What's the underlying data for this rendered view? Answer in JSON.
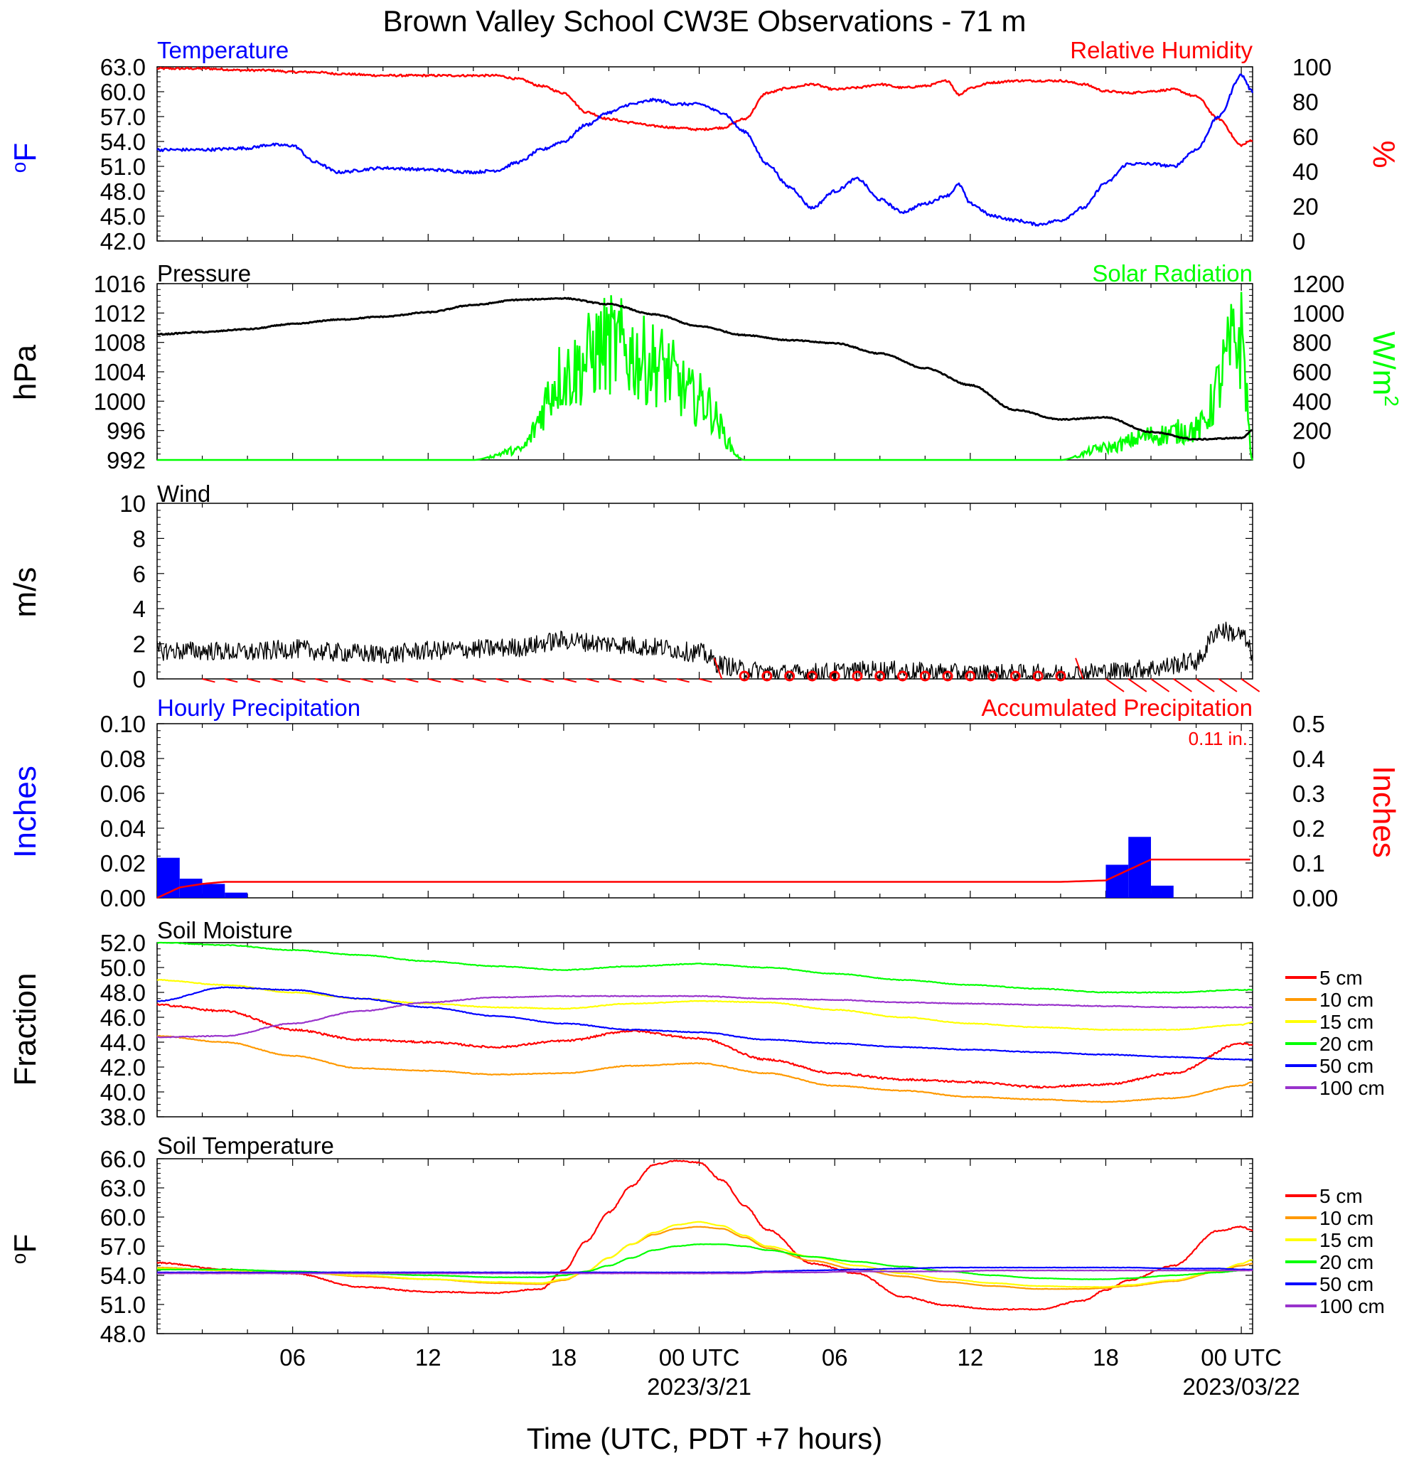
{
  "title": "Brown Valley School CW3E Observations - 71 m",
  "xaxis": {
    "label": "Time (UTC, PDT +7 hours)",
    "ticks": [
      {
        "h": 6,
        "label": "06"
      },
      {
        "h": 12,
        "label": "12"
      },
      {
        "h": 18,
        "label": "18"
      },
      {
        "h": 24,
        "label": "00 UTC",
        "date": "2023/3/21"
      },
      {
        "h": 30,
        "label": "06"
      },
      {
        "h": 36,
        "label": "12"
      },
      {
        "h": 42,
        "label": "18"
      },
      {
        "h": 48,
        "label": "00 UTC",
        "date": "2023/03/22"
      }
    ],
    "range_hours": [
      0,
      48.5
    ]
  },
  "panels": {
    "temperature": {
      "left_title": "Temperature",
      "right_title": "Relative Humidity",
      "left_unit": "oF",
      "right_unit": "%",
      "left_ticks": [
        "63.0",
        "60.0",
        "57.0",
        "54.0",
        "51.0",
        "48.0",
        "45.0",
        "42.0"
      ],
      "right_ticks": [
        "100",
        "80",
        "60",
        "40",
        "20",
        "0"
      ]
    },
    "pressure": {
      "left_title": "Pressure",
      "right_title": "Solar Radiation",
      "left_unit": "hPa",
      "right_unit": "W/m2",
      "left_ticks": [
        "1016",
        "1012",
        "1008",
        "1004",
        "1000",
        "996",
        "992"
      ],
      "right_ticks": [
        "1200",
        "1000",
        "800",
        "600",
        "400",
        "200",
        "0"
      ]
    },
    "wind": {
      "left_title": "Wind",
      "left_unit": "m/s",
      "left_ticks": [
        "10",
        "8",
        "6",
        "4",
        "2",
        "0"
      ]
    },
    "precip": {
      "left_title": "Hourly Precipitation",
      "right_title": "Accumulated Precipitation",
      "left_unit": "Inches",
      "right_unit": "Inches",
      "total_label": "0.11 in.",
      "left_ticks": [
        "0.10",
        "0.08",
        "0.06",
        "0.04",
        "0.02",
        "0.00"
      ],
      "right_ticks": [
        "0.5",
        "0.4",
        "0.3",
        "0.2",
        "0.1",
        "0.00"
      ]
    },
    "soil_moisture": {
      "left_title": "Soil Moisture",
      "left_unit": "Fraction",
      "left_ticks": [
        "52.0",
        "50.0",
        "48.0",
        "46.0",
        "44.0",
        "42.0",
        "40.0",
        "38.0"
      ],
      "legend": [
        "5 cm",
        "10 cm",
        "15 cm",
        "20 cm",
        "50 cm",
        "100 cm"
      ]
    },
    "soil_temperature": {
      "left_title": "Soil Temperature",
      "left_unit": "oF",
      "left_ticks": [
        "66.0",
        "63.0",
        "60.0",
        "57.0",
        "54.0",
        "51.0",
        "48.0"
      ],
      "legend": [
        "5 cm",
        "10 cm",
        "15 cm",
        "20 cm",
        "50 cm",
        "100 cm"
      ]
    }
  },
  "colors": {
    "temp": "#0000ff",
    "rh": "#ff0000",
    "pressure": "#000000",
    "solar": "#00ff00",
    "wind": "#000000",
    "barb": "#ff0000",
    "precip_bar": "#0000ff",
    "precip_acc": "#ff0000",
    "depths": [
      "#ff0000",
      "#ff9900",
      "#ffff00",
      "#00ff00",
      "#0000ff",
      "#9933cc"
    ]
  },
  "chart_data": [
    {
      "type": "line",
      "name": "temperature",
      "x_hours": [
        0,
        2,
        4,
        5,
        6,
        7,
        8,
        10,
        12,
        14,
        15,
        16,
        17,
        18,
        19,
        20,
        21,
        22,
        23,
        24,
        25,
        26,
        27,
        28,
        29,
        30,
        31,
        32,
        33,
        34,
        35,
        35.5,
        36,
        37,
        38,
        39,
        40,
        41,
        42,
        43,
        44,
        45,
        46,
        47,
        48,
        48.5
      ],
      "series": [
        {
          "axis": "left",
          "values": [
            53,
            53,
            53.2,
            53.6,
            53.5,
            51.5,
            50.3,
            50.8,
            50.6,
            50.3,
            50.5,
            51.5,
            53,
            54,
            56,
            57.5,
            58.5,
            59,
            58.5,
            58.5,
            57.5,
            55.2,
            51.3,
            48.5,
            46,
            48,
            49.5,
            47,
            45.5,
            46.5,
            47.5,
            48.8,
            46.5,
            45,
            44.5,
            44,
            44.5,
            46,
            49,
            51.3,
            51.3,
            51,
            53,
            57,
            62,
            60
          ]
        },
        {
          "axis": "right",
          "values": [
            99,
            99,
            98,
            98,
            97,
            97,
            96,
            95,
            95,
            95,
            95,
            93,
            89,
            85,
            74,
            70,
            68,
            66,
            65,
            64,
            65,
            70,
            85,
            88,
            90,
            87,
            88,
            90,
            88,
            89,
            92,
            84,
            88,
            91,
            92,
            92,
            92,
            90,
            86,
            85,
            86,
            87,
            83,
            70,
            55,
            58
          ]
        }
      ],
      "left_range": [
        42,
        63
      ],
      "right_range": [
        0,
        100
      ]
    },
    {
      "type": "line",
      "name": "pressure",
      "x_hours": [
        0,
        2,
        4,
        6,
        8,
        10,
        12,
        14,
        16,
        18,
        20,
        22,
        24,
        26,
        28,
        30,
        32,
        34,
        36,
        38,
        40,
        42,
        44,
        46,
        48,
        48.5
      ],
      "series": [
        {
          "axis": "left",
          "values": [
            1009.1,
            1009.4,
            1009.8,
            1010.5,
            1011.1,
            1011.5,
            1012.1,
            1013.1,
            1013.8,
            1014.0,
            1013.2,
            1011.8,
            1010.2,
            1009.0,
            1008.3,
            1007.9,
            1006.5,
            1004.5,
            1002.2,
            998.8,
            997.5,
            997.8,
            995.8,
            994.8,
            995.0,
            996.0
          ]
        },
        {
          "axis": "right",
          "values": [
            0,
            0,
            0,
            0,
            0,
            0,
            0,
            0,
            80,
            700,
            950,
            800,
            500,
            0,
            0,
            0,
            0,
            0,
            0,
            0,
            0,
            100,
            200,
            250,
            1000,
            0
          ]
        }
      ],
      "left_range": [
        992,
        1016
      ],
      "right_range": [
        0,
        1200
      ]
    },
    {
      "type": "line",
      "name": "wind_speed",
      "x_hours": [
        0,
        2,
        4,
        6,
        8,
        10,
        12,
        14,
        16,
        18,
        20,
        22,
        24,
        25,
        26,
        28,
        30,
        32,
        34,
        36,
        38,
        40,
        42,
        44,
        46,
        47,
        48,
        48.5
      ],
      "series": [
        {
          "values": [
            1.6,
            1.6,
            1.5,
            1.7,
            1.5,
            1.4,
            1.6,
            1.7,
            1.8,
            2.2,
            2.0,
            1.8,
            1.5,
            0.8,
            0.5,
            0.3,
            0.4,
            0.5,
            0.4,
            0.3,
            0.3,
            0.3,
            0.4,
            0.6,
            1.0,
            2.8,
            2.5,
            1.5
          ]
        }
      ],
      "range": [
        0,
        10
      ]
    },
    {
      "type": "bar",
      "name": "hourly_precipitation",
      "x_hours": [
        0,
        1,
        2,
        3,
        42,
        43,
        44
      ],
      "values": [
        0.023,
        0.011,
        0.008,
        0.003,
        0.019,
        0.035,
        0.007
      ],
      "range": [
        0,
        0.1
      ],
      "accumulated": {
        "x_hours": [
          0,
          1,
          2,
          3,
          40,
          42,
          43,
          44,
          48.5
        ],
        "values": [
          0,
          0.03,
          0.04,
          0.046,
          0.046,
          0.05,
          0.08,
          0.11,
          0.11
        ],
        "range": [
          0,
          0.5
        ]
      }
    },
    {
      "type": "line",
      "name": "soil_moisture",
      "x_hours": [
        0,
        3,
        6,
        9,
        12,
        15,
        18,
        21,
        24,
        27,
        30,
        33,
        36,
        39,
        42,
        45,
        48,
        48.5
      ],
      "series": [
        {
          "name": "5 cm",
          "values": [
            47,
            46.5,
            45,
            44.2,
            44,
            43.6,
            44.1,
            44.9,
            44.3,
            42.6,
            41.5,
            41,
            40.8,
            40.4,
            40.6,
            41.5,
            43.9,
            43.8
          ]
        },
        {
          "name": "10 cm",
          "values": [
            44.5,
            44,
            42.9,
            41.9,
            41.7,
            41.4,
            41.5,
            42.1,
            42.3,
            41.5,
            40.5,
            40.1,
            39.6,
            39.4,
            39.2,
            39.5,
            40.5,
            40.8
          ]
        },
        {
          "name": "15 cm",
          "values": [
            49,
            48.6,
            48,
            47.5,
            47.1,
            46.8,
            46.7,
            47.1,
            47.3,
            47.2,
            46.6,
            46,
            45.5,
            45.2,
            45,
            45,
            45.4,
            45.6
          ]
        },
        {
          "name": "20 cm",
          "values": [
            52,
            51.8,
            51.4,
            51,
            50.5,
            50.1,
            49.8,
            50.1,
            50.3,
            50,
            49.5,
            49,
            48.6,
            48.3,
            48,
            48,
            48.2,
            48.2
          ]
        },
        {
          "name": "50 cm",
          "values": [
            47.3,
            48.4,
            48.2,
            47.5,
            46.8,
            46.1,
            45.5,
            45,
            44.8,
            44.2,
            43.9,
            43.6,
            43.4,
            43.2,
            43,
            42.8,
            42.6,
            42.6
          ]
        },
        {
          "name": "100 cm",
          "values": [
            44.4,
            44.5,
            45.5,
            46.5,
            47.2,
            47.6,
            47.7,
            47.7,
            47.7,
            47.5,
            47.4,
            47.2,
            47.1,
            47,
            46.9,
            46.8,
            46.8,
            46.8
          ]
        }
      ],
      "range": [
        38,
        52
      ]
    },
    {
      "type": "line",
      "name": "soil_temperature",
      "x_hours": [
        0,
        3,
        6,
        9,
        12,
        15,
        17,
        18,
        19,
        20,
        21,
        22,
        23,
        24,
        25,
        26,
        27,
        29,
        31,
        33,
        35,
        37,
        39,
        41,
        42,
        43,
        45,
        47,
        48,
        48.5
      ],
      "series": [
        {
          "name": "5 cm",
          "values": [
            55.3,
            54.6,
            54.2,
            52.8,
            52.3,
            52.2,
            52.6,
            54.5,
            57.5,
            60.5,
            63.2,
            65.4,
            65.8,
            65.6,
            63.8,
            61.2,
            58.7,
            55.2,
            54.2,
            51.8,
            50.9,
            50.5,
            50.5,
            51.4,
            52.5,
            53.5,
            55.0,
            58.6,
            59.0,
            58.6
          ]
        },
        {
          "name": "10 cm",
          "values": [
            54.8,
            54.5,
            54.4,
            53.9,
            53.6,
            53.2,
            53.1,
            53.5,
            54.4,
            55.8,
            57.2,
            58.2,
            58.8,
            59.0,
            58.8,
            57.9,
            56.8,
            55.5,
            54.6,
            53.9,
            53.3,
            52.9,
            52.6,
            52.6,
            52.7,
            52.9,
            53.4,
            54.4,
            55.0,
            55.2
          ]
        },
        {
          "name": "15 cm",
          "values": [
            54.7,
            54.5,
            54.3,
            54.0,
            53.6,
            53.3,
            53.2,
            53.6,
            54.4,
            55.8,
            57.2,
            58.4,
            59.2,
            59.5,
            59.1,
            58.1,
            57.0,
            55.9,
            55.0,
            54.2,
            53.6,
            53.2,
            52.9,
            52.8,
            52.8,
            53.0,
            53.5,
            54.5,
            55.2,
            55.6
          ]
        },
        {
          "name": "20 cm",
          "values": [
            54.6,
            54.6,
            54.4,
            54.2,
            54.0,
            53.8,
            53.8,
            54.0,
            54.4,
            55.0,
            55.8,
            56.6,
            57.0,
            57.2,
            57.2,
            57.0,
            56.6,
            55.9,
            55.4,
            54.9,
            54.4,
            54.0,
            53.7,
            53.6,
            53.6,
            53.7,
            54.0,
            54.3,
            54.5,
            54.6
          ]
        },
        {
          "name": "50 cm",
          "values": [
            54.3,
            54.3,
            54.3,
            54.3,
            54.3,
            54.3,
            54.3,
            54.3,
            54.3,
            54.3,
            54.3,
            54.3,
            54.3,
            54.3,
            54.3,
            54.3,
            54.4,
            54.5,
            54.6,
            54.7,
            54.8,
            54.8,
            54.8,
            54.8,
            54.8,
            54.8,
            54.7,
            54.7,
            54.6,
            54.6
          ]
        },
        {
          "name": "100 cm",
          "values": [
            54.2,
            54.2,
            54.2,
            54.2,
            54.2,
            54.2,
            54.2,
            54.2,
            54.2,
            54.2,
            54.2,
            54.2,
            54.2,
            54.2,
            54.2,
            54.2,
            54.3,
            54.3,
            54.4,
            54.4,
            54.4,
            54.5,
            54.5,
            54.5,
            54.5,
            54.5,
            54.5,
            54.5,
            54.5,
            54.5
          ]
        }
      ],
      "range": [
        48,
        66
      ]
    }
  ]
}
